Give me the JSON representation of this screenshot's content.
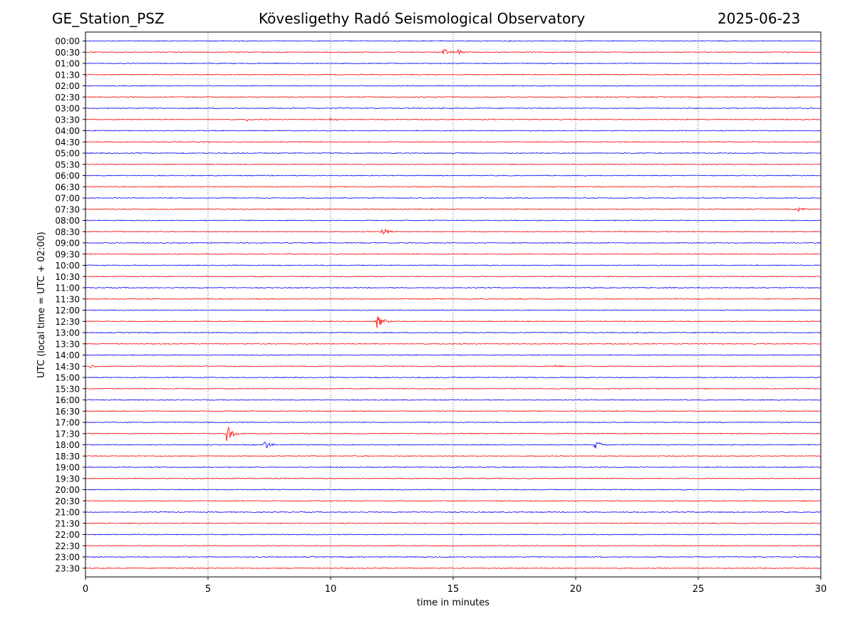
{
  "header": {
    "station": "GE_Station_PSZ",
    "observatory": "Kövesligethy Radó Seismological Observatory",
    "date": "2025-06-23"
  },
  "chart_data": {
    "type": "line",
    "title": "Kövesligethy Radó Seismological Observatory",
    "xlabel": "time in minutes",
    "ylabel": "UTC (local time = UTC + 02:00)",
    "xlim": [
      0,
      30
    ],
    "xticks": [
      0,
      5,
      10,
      15,
      20,
      25,
      30
    ],
    "vgrid_minutes": [
      5,
      10,
      15,
      20,
      25
    ],
    "grid": "vertical dotted",
    "row_labels": [
      "00:00",
      "00:30",
      "01:00",
      "01:30",
      "02:00",
      "02:30",
      "03:00",
      "03:30",
      "04:00",
      "04:30",
      "05:00",
      "05:30",
      "06:00",
      "06:30",
      "07:00",
      "07:30",
      "08:00",
      "08:30",
      "09:00",
      "09:30",
      "10:00",
      "10:30",
      "11:00",
      "11:30",
      "12:00",
      "12:30",
      "13:00",
      "13:30",
      "14:00",
      "14:30",
      "15:00",
      "15:30",
      "16:00",
      "16:30",
      "17:00",
      "17:30",
      "18:00",
      "18:30",
      "19:00",
      "19:30",
      "20:00",
      "20:30",
      "21:00",
      "21:30",
      "22:00",
      "22:30",
      "23:00",
      "23:30"
    ],
    "trace_colors": [
      "#0000ff",
      "#ff0000"
    ],
    "events": [
      {
        "row": "00:30",
        "minute": 14.6,
        "amplitude": 0.35
      },
      {
        "row": "00:30",
        "minute": 15.2,
        "amplitude": 0.25
      },
      {
        "row": "03:30",
        "minute": 6.6,
        "amplitude": 0.15
      },
      {
        "row": "03:30",
        "minute": 10.0,
        "amplitude": 0.15
      },
      {
        "row": "07:30",
        "minute": 29.1,
        "amplitude": 0.25
      },
      {
        "row": "08:30",
        "minute": 12.1,
        "amplitude": 0.45
      },
      {
        "row": "12:30",
        "minute": 11.9,
        "amplitude": 0.6
      },
      {
        "row": "14:30",
        "minute": 0.2,
        "amplitude": 0.2
      },
      {
        "row": "14:30",
        "minute": 19.2,
        "amplitude": 0.15
      },
      {
        "row": "17:30",
        "minute": 5.8,
        "amplitude": 0.7
      },
      {
        "row": "18:00",
        "minute": 7.3,
        "amplitude": 0.45
      },
      {
        "row": "18:00",
        "minute": 20.8,
        "amplitude": 0.4
      }
    ]
  }
}
